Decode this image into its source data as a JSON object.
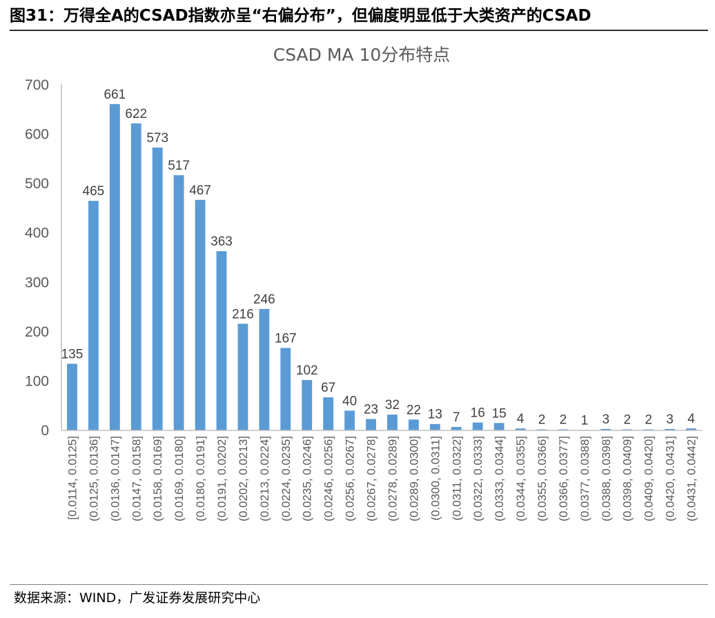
{
  "figure": {
    "title": "图31：万得全A的CSAD指数亦呈“右偏分布”，但偏度明显低于大类资产的CSAD",
    "source": "数据来源：WIND，广发证券发展研究中心"
  },
  "colors": {
    "bar": "#5b9bd5",
    "axis": "#bfbfbf",
    "text": "#595959"
  },
  "chart_data": {
    "type": "bar",
    "title": "CSAD MA 10分布特点",
    "xlabel": "",
    "ylabel": "",
    "ylim": [
      0,
      700
    ],
    "yticks": [
      0,
      100,
      200,
      300,
      400,
      500,
      600,
      700
    ],
    "grid": false,
    "legend": "none",
    "categories": [
      "[0.0114, 0.0125]",
      "(0.0125, 0.0136]",
      "(0.0136, 0.0147]",
      "(0.0147, 0.0158]",
      "(0.0158, 0.0169]",
      "(0.0169, 0.0180]",
      "(0.0180, 0.0191]",
      "(0.0191, 0.0202]",
      "(0.0202, 0.0213]",
      "(0.0213, 0.0224]",
      "(0.0224, 0.0235]",
      "(0.0235, 0.0246]",
      "(0.0246, 0.0256]",
      "(0.0256, 0.0267]",
      "(0.0267, 0.0278]",
      "(0.0278, 0.0289]",
      "(0.0289, 0.0300]",
      "(0.0300, 0.0311]",
      "(0.0311, 0.0322]",
      "(0.0322, 0.0333]",
      "(0.0333, 0.0344]",
      "(0.0344, 0.0355]",
      "(0.0355, 0.0366]",
      "(0.0366, 0.0377]",
      "(0.0377, 0.0388]",
      "(0.0388, 0.0398]",
      "(0.0398, 0.0409]",
      "(0.0409, 0.0420]",
      "(0.0420, 0.0431]",
      "(0.0431, 0.0442]"
    ],
    "values": [
      135,
      465,
      661,
      622,
      573,
      517,
      467,
      363,
      216,
      246,
      167,
      102,
      67,
      40,
      23,
      32,
      22,
      13,
      7,
      16,
      15,
      4,
      2,
      2,
      1,
      3,
      2,
      2,
      3,
      4
    ]
  }
}
